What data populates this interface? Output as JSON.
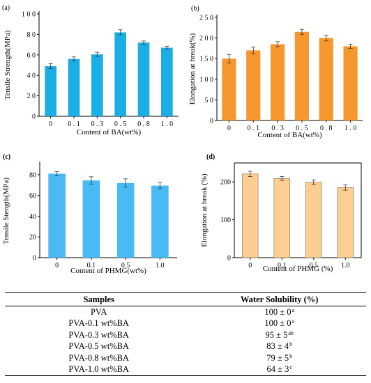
{
  "chart_data": [
    {
      "panel": "(a)",
      "type": "bar",
      "categories": [
        "0",
        "0.1",
        "0.3",
        "0.5",
        "0.8",
        "1.0"
      ],
      "values": [
        49,
        56,
        60.5,
        82,
        72,
        67
      ],
      "errors": [
        2.5,
        2,
        2,
        2.5,
        1.5,
        1.5
      ],
      "xlabel": "Content of BA(wt%)",
      "ylabel": "Tensile Strength(MPa)",
      "ylim": [
        0,
        100
      ],
      "yticks": [
        "0",
        "20",
        "40",
        "60",
        "80",
        "100"
      ],
      "color": "#1aaee5"
    },
    {
      "panel": "(b)",
      "type": "bar",
      "categories": [
        "0",
        "0.1",
        "0.3",
        "0.5",
        "0.8",
        "1.0"
      ],
      "values": [
        150,
        170,
        185,
        215,
        200,
        180
      ],
      "errors": [
        10,
        8,
        6,
        6,
        7,
        5
      ],
      "xlabel": "Content of BA(wt%)",
      "ylabel": "Elongation at break(%)",
      "ylim": [
        0,
        250
      ],
      "yticks": [
        "0",
        "50",
        "100",
        "150",
        "200",
        "250"
      ],
      "color": "#f7982f"
    },
    {
      "panel": "(c)",
      "type": "bar",
      "categories": [
        "0",
        "0.1",
        "0.5",
        "1.0"
      ],
      "values": [
        81,
        74.5,
        72,
        69.5
      ],
      "errors": [
        2,
        3.5,
        4,
        3
      ],
      "xlabel": "Content of PHMG(wt%)",
      "ylabel": "Tensile Stength(MPa)",
      "ylim": [
        0,
        90
      ],
      "yticks": [
        "0",
        "20",
        "40",
        "60",
        "80"
      ],
      "color": "#49baf4"
    },
    {
      "panel": "(d)",
      "type": "bar",
      "categories": [
        "0",
        "0.1",
        "0.5",
        "1.0"
      ],
      "values": [
        221,
        209,
        199,
        185
      ],
      "errors": [
        7,
        5,
        6,
        7
      ],
      "xlabel": "Content of PHMG (%)",
      "ylabel": "Elongation at break (%)",
      "ylim": [
        0,
        250
      ],
      "yticks": [
        "0",
        "100",
        "200"
      ],
      "color": "#fcce92"
    }
  ],
  "table": {
    "headers": [
      "Samples",
      "Water Solubility (%)"
    ],
    "rows": [
      {
        "sample": "PVA",
        "value": "100 ± 0",
        "sup": "a"
      },
      {
        "sample": "PVA-0.1 wt%BA",
        "value": "100 ± 0",
        "sup": "a"
      },
      {
        "sample": "PVA-0.3 wt%BA",
        "value": "95 ± 5",
        "sup": "ab"
      },
      {
        "sample": "PVA-0.5 wt%BA",
        "value": "83 ± 4",
        "sup": "b"
      },
      {
        "sample": "PVA-0.8 wt%BA",
        "value": "79 ± 5",
        "sup": "b"
      },
      {
        "sample": "PVA-1.0 wt%BA",
        "value": "64 ± 3",
        "sup": "c"
      }
    ]
  }
}
